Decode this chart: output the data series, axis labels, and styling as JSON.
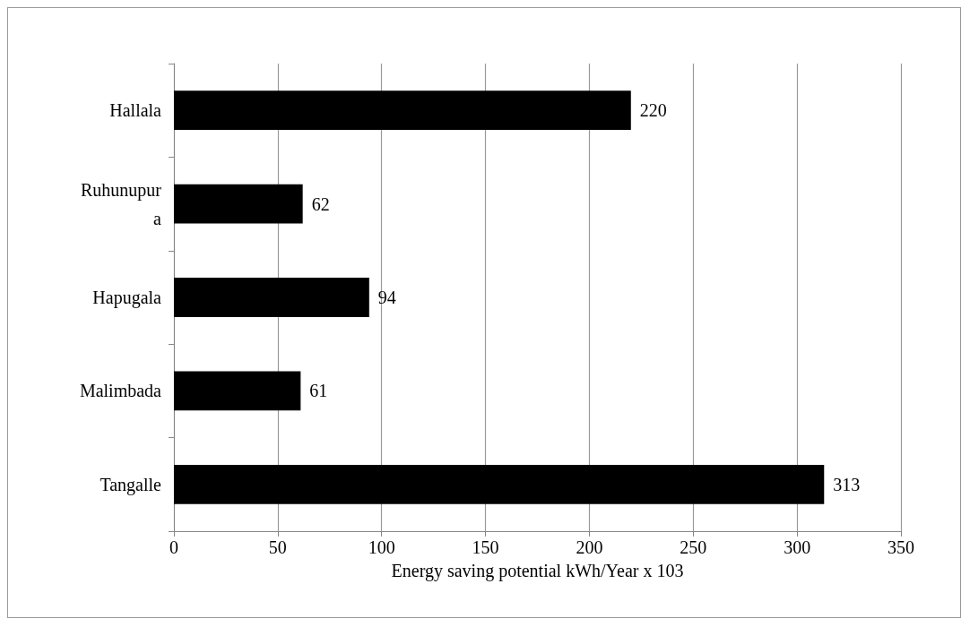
{
  "chart_data": {
    "type": "bar",
    "orientation": "horizontal",
    "xlabel": "Energy saving potential kWh/Year x 103",
    "categories": [
      "Hallala",
      "Ruhunupura",
      "Hapugala",
      "Malimbada",
      "Tangalle"
    ],
    "values": [
      220,
      62,
      94,
      61,
      313
    ],
    "color": "#000000",
    "xlim": [
      0,
      350
    ],
    "xticks": [
      0,
      50,
      100,
      150,
      200,
      250,
      300,
      350
    ],
    "grid": "x",
    "data_labels": true
  }
}
